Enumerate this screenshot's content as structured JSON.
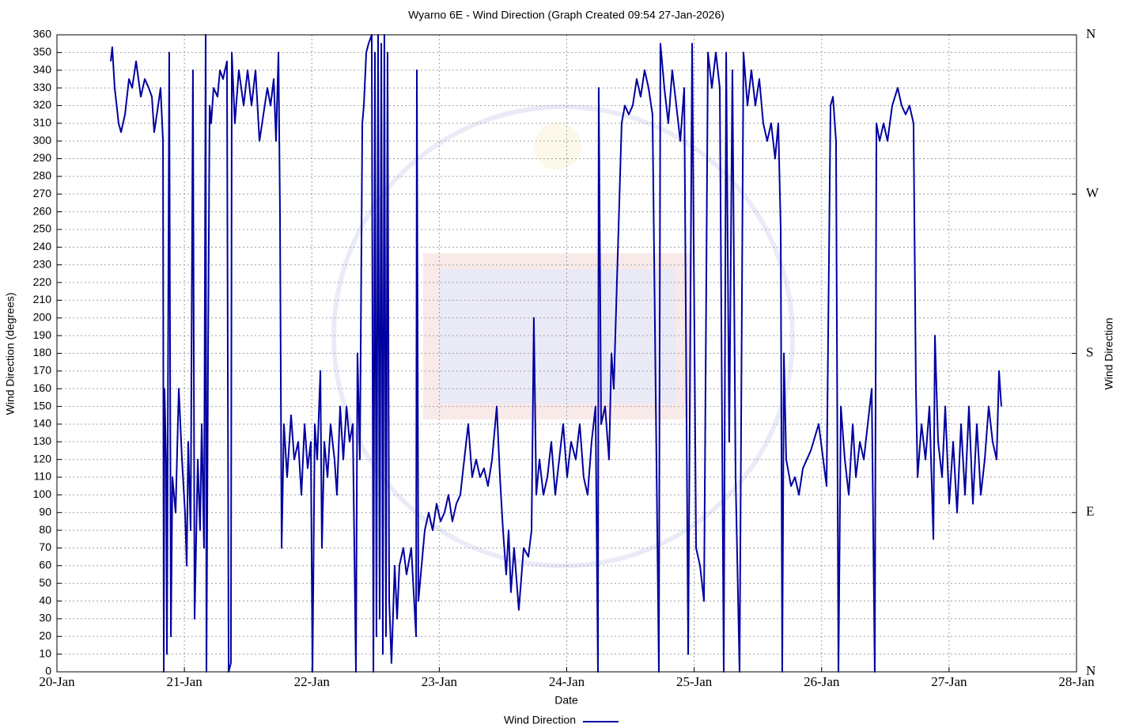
{
  "chart_data": {
    "type": "line",
    "title": "Wyarno 6E - Wind Direction (Graph Created 09:54 27-Jan-2026)",
    "xlabel": "Date",
    "ylabel": "Wind Direction (degrees)",
    "y2label": "Wind Direction",
    "xlim": [
      20,
      28
    ],
    "xticks": [
      {
        "value": 20,
        "label": "20-Jan"
      },
      {
        "value": 21,
        "label": "21-Jan"
      },
      {
        "value": 22,
        "label": "22-Jan"
      },
      {
        "value": 23,
        "label": "23-Jan"
      },
      {
        "value": 24,
        "label": "24-Jan"
      },
      {
        "value": 25,
        "label": "25-Jan"
      },
      {
        "value": 26,
        "label": "26-Jan"
      },
      {
        "value": 27,
        "label": "27-Jan"
      },
      {
        "value": 28,
        "label": "28-Jan"
      }
    ],
    "ylim": [
      0,
      360
    ],
    "yticks": [
      0,
      10,
      20,
      30,
      40,
      50,
      60,
      70,
      80,
      90,
      100,
      110,
      120,
      130,
      140,
      150,
      160,
      170,
      180,
      190,
      200,
      210,
      220,
      230,
      240,
      250,
      260,
      270,
      280,
      290,
      300,
      310,
      320,
      330,
      340,
      350,
      360
    ],
    "y2lim": [
      0,
      360
    ],
    "y2ticks": [
      {
        "value": 0,
        "label": "N"
      },
      {
        "value": 90,
        "label": "E"
      },
      {
        "value": 180,
        "label": "S"
      },
      {
        "value": 270,
        "label": "W"
      },
      {
        "value": 360,
        "label": "N"
      }
    ],
    "grid": true,
    "legend": "bottom",
    "x": [
      20.422,
      20.434,
      20.453,
      20.484,
      20.503,
      20.534,
      20.565,
      20.59,
      20.621,
      20.658,
      20.689,
      20.72,
      20.745,
      20.763,
      20.794,
      20.813,
      20.832,
      20.838,
      20.844,
      20.856,
      20.863,
      20.881,
      20.894,
      20.906,
      20.931,
      20.956,
      20.981,
      21.005,
      21.018,
      21.03,
      21.049,
      21.067,
      21.08,
      21.105,
      21.123,
      21.136,
      21.154,
      21.167,
      21.173,
      21.185,
      21.198,
      21.21,
      21.229,
      21.26,
      21.279,
      21.303,
      21.334,
      21.347,
      21.365,
      21.372,
      21.396,
      21.427,
      21.465,
      21.496,
      21.527,
      21.558,
      21.589,
      21.62,
      21.651,
      21.676,
      21.701,
      21.719,
      21.738,
      21.75,
      21.763,
      21.781,
      21.806,
      21.837,
      21.862,
      21.893,
      21.918,
      21.943,
      21.967,
      21.992,
      22.005,
      22.023,
      22.042,
      22.067,
      22.079,
      22.098,
      22.123,
      22.147,
      22.178,
      22.197,
      22.222,
      22.247,
      22.272,
      22.296,
      22.321,
      22.346,
      22.358,
      22.377,
      22.396,
      22.408,
      22.427,
      22.445,
      22.47,
      22.483,
      22.495,
      22.507,
      22.52,
      22.532,
      22.545,
      22.557,
      22.569,
      22.582,
      22.594,
      22.607,
      22.625,
      22.65,
      22.669,
      22.687,
      22.718,
      22.743,
      22.78,
      22.818,
      22.824,
      22.836,
      22.861,
      22.886,
      22.917,
      22.948,
      22.979,
      23.01,
      23.041,
      23.072,
      23.103,
      23.134,
      23.165,
      23.196,
      23.227,
      23.258,
      23.289,
      23.32,
      23.351,
      23.382,
      23.414,
      23.451,
      23.476,
      23.5,
      23.525,
      23.544,
      23.562,
      23.587,
      23.624,
      23.662,
      23.699,
      23.724,
      23.742,
      23.761,
      23.786,
      23.817,
      23.848,
      23.879,
      23.91,
      23.941,
      23.972,
      24.003,
      24.034,
      24.071,
      24.102,
      24.133,
      24.164,
      24.195,
      24.226,
      24.245,
      24.251,
      24.27,
      24.301,
      24.332,
      24.351,
      24.369,
      24.431,
      24.456,
      24.487,
      24.518,
      24.549,
      24.58,
      24.611,
      24.642,
      24.673,
      24.723,
      24.735,
      24.766,
      24.797,
      24.828,
      24.86,
      24.891,
      24.922,
      24.953,
      24.984,
      25.015,
      25.046,
      25.077,
      25.108,
      25.139,
      25.17,
      25.201,
      25.232,
      25.251,
      25.275,
      25.3,
      25.325,
      25.356,
      25.387,
      25.418,
      25.449,
      25.48,
      25.511,
      25.542,
      25.573,
      25.604,
      25.635,
      25.66,
      25.679,
      25.691,
      25.704,
      25.722,
      25.76,
      25.791,
      25.822,
      25.853,
      25.884,
      25.915,
      25.977,
      26.039,
      26.07,
      26.089,
      26.113,
      26.132,
      26.151,
      26.182,
      26.213,
      26.244,
      26.269,
      26.3,
      26.331,
      26.362,
      26.393,
      26.417,
      26.43,
      26.455,
      26.486,
      26.517,
      26.554,
      26.597,
      26.628,
      26.659,
      26.69,
      26.721,
      26.74,
      26.753,
      26.784,
      26.815,
      26.846,
      26.877,
      26.889,
      26.914,
      26.945,
      26.97,
      27.001,
      27.032,
      27.063,
      27.094,
      27.125,
      27.156,
      27.187,
      27.218,
      27.249,
      27.28,
      27.311,
      27.342,
      27.373,
      27.392,
      27.41
    ],
    "series": [
      {
        "name": "Wind Direction",
        "color": "#0000a0",
        "values": [
          345,
          353,
          330,
          310,
          305,
          315,
          335,
          330,
          345,
          325,
          335,
          330,
          325,
          305,
          320,
          330,
          300,
          0,
          160,
          120,
          10,
          350,
          20,
          110,
          90,
          160,
          120,
          90,
          60,
          130,
          80,
          340,
          30,
          120,
          80,
          140,
          70,
          360,
          0,
          170,
          320,
          310,
          330,
          325,
          340,
          335,
          345,
          0,
          5,
          350,
          310,
          340,
          320,
          340,
          320,
          340,
          300,
          315,
          330,
          320,
          335,
          300,
          350,
          260,
          70,
          140,
          110,
          145,
          120,
          130,
          100,
          140,
          115,
          130,
          0,
          140,
          120,
          170,
          70,
          130,
          110,
          140,
          120,
          100,
          150,
          120,
          150,
          130,
          140,
          0,
          180,
          120,
          310,
          320,
          350,
          355,
          360,
          0,
          350,
          20,
          360,
          30,
          355,
          10,
          360,
          20,
          350,
          40,
          5,
          60,
          30,
          60,
          70,
          55,
          70,
          20,
          340,
          40,
          60,
          80,
          90,
          80,
          95,
          85,
          90,
          100,
          85,
          95,
          100,
          120,
          140,
          110,
          120,
          110,
          115,
          105,
          120,
          150,
          110,
          80,
          55,
          80,
          45,
          70,
          35,
          70,
          65,
          80,
          200,
          100,
          120,
          100,
          110,
          130,
          100,
          120,
          140,
          110,
          130,
          120,
          140,
          110,
          100,
          130,
          150,
          0,
          330,
          140,
          150,
          120,
          180,
          160,
          310,
          320,
          315,
          320,
          335,
          325,
          340,
          330,
          315,
          0,
          355,
          330,
          310,
          340,
          320,
          300,
          330,
          10,
          355,
          70,
          60,
          40,
          350,
          330,
          350,
          330,
          0,
          350,
          130,
          340,
          110,
          0,
          350,
          320,
          340,
          320,
          335,
          310,
          300,
          310,
          290,
          310,
          250,
          0,
          180,
          120,
          105,
          110,
          100,
          115,
          120,
          125,
          140,
          105,
          320,
          325,
          300,
          0,
          150,
          120,
          100,
          140,
          110,
          130,
          120,
          140,
          160,
          0,
          310,
          300,
          310,
          300,
          320,
          330,
          320,
          315,
          320,
          310,
          160,
          110,
          140,
          120,
          150,
          75,
          190,
          130,
          110,
          150,
          95,
          130,
          90,
          140,
          100,
          150,
          95,
          140,
          100,
          120,
          150,
          130,
          120,
          170,
          150
        ]
      }
    ]
  }
}
